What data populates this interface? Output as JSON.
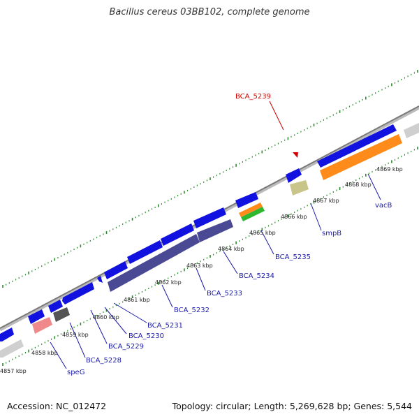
{
  "title": "Bacillus cereus 03BB102, complete genome",
  "footer": {
    "accession": "Accession: NC_012472",
    "summary": "Topology: circular; Length: 5,269,628 bp; Genes: 5,544"
  },
  "colors": {
    "backbone": "#8a8a8a",
    "ticks": "#2e8b2e",
    "gene_blue": "#1212e0",
    "gene_purple": "#4a4a94",
    "gene_orange": "#ff8c1a",
    "gene_green": "#2fb82f",
    "gene_khaki": "#c8c48a",
    "gene_pink": "#f08a8a",
    "gene_grey": "#555555",
    "gene_lightgrey": "#cfcfcf",
    "label": "#1a1aa8",
    "highlight": "#d00000"
  },
  "scale": {
    "tick_labels": [
      "4857 kbp",
      "4858 kbp",
      "4859 kbp",
      "4860 kbp",
      "4861 kbp",
      "4862 kbp",
      "4863 kbp",
      "4864 kbp",
      "4865 kbp",
      "4866 kbp",
      "4867 kbp",
      "4868 kbp",
      "4869 kbp"
    ]
  },
  "gene_labels": [
    "speG",
    "BCA_5228",
    "BCA_5229",
    "BCA_5230",
    "BCA_5231",
    "BCA_5232",
    "BCA_5233",
    "BCA_5234",
    "BCA_5235",
    "smpB",
    "vacB"
  ],
  "highlight_label": "BCA_5239"
}
